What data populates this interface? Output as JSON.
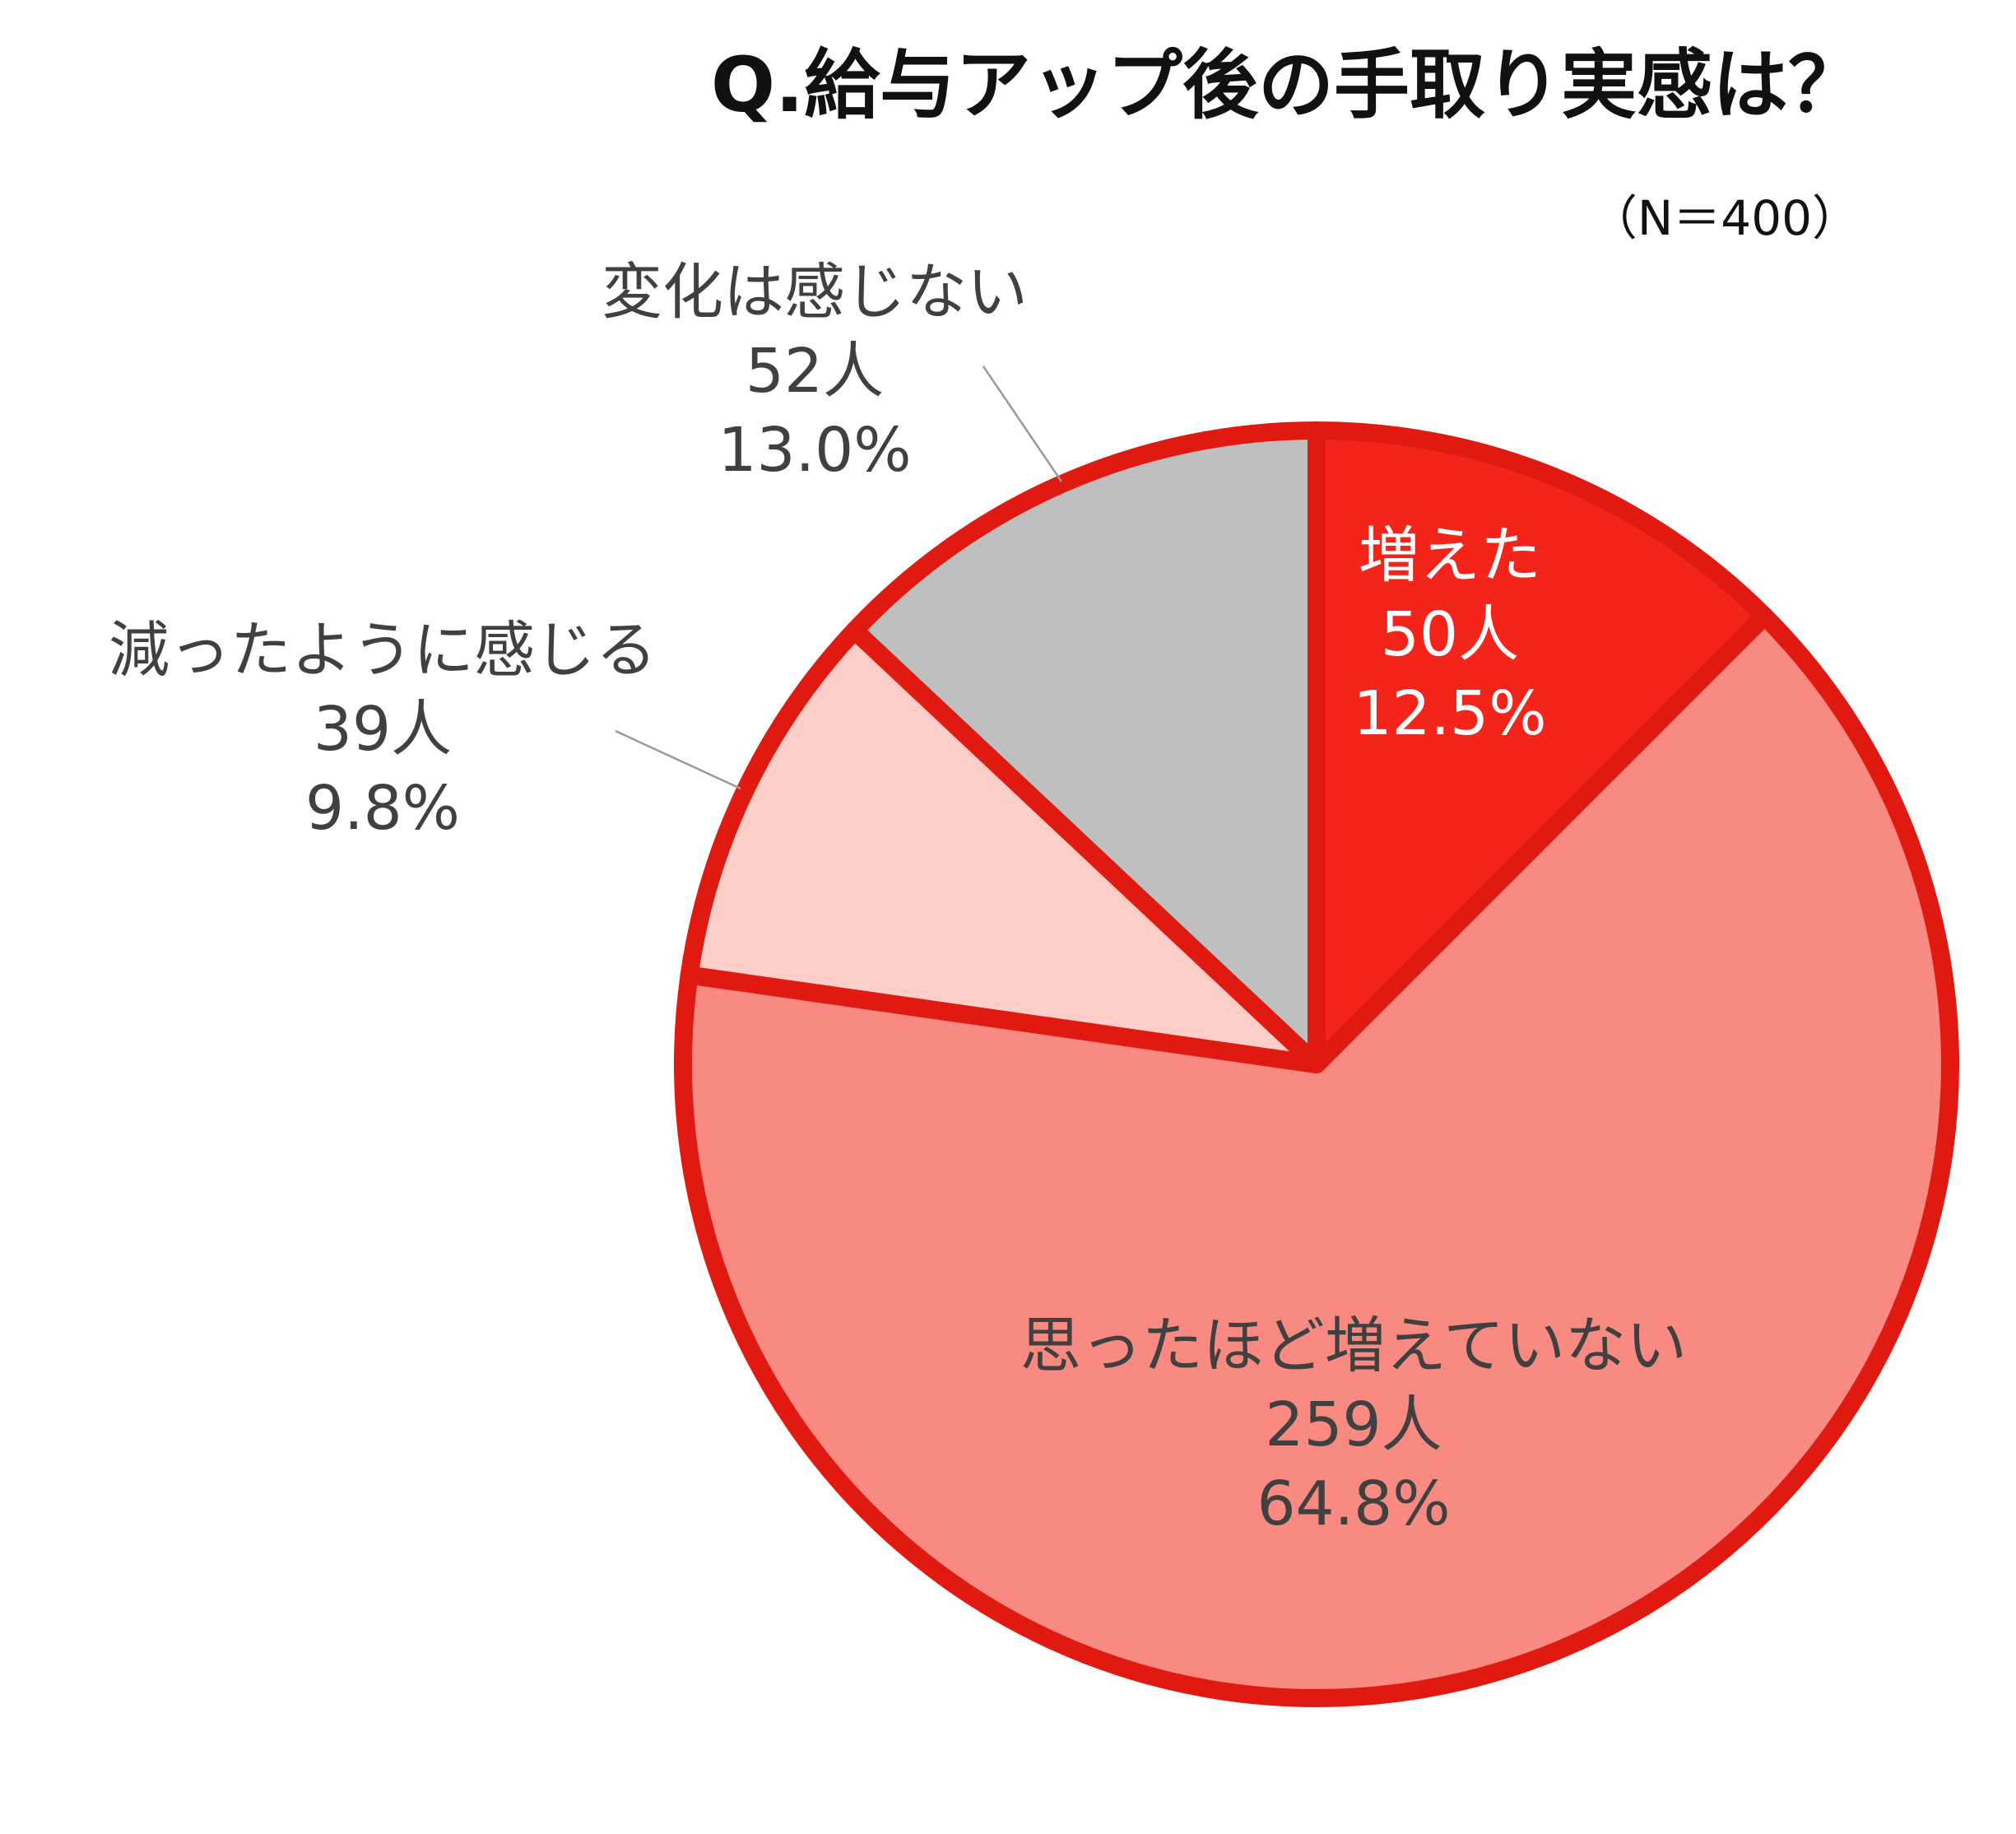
{
  "chart_data": {
    "type": "pie",
    "title": "Q.給与アップ後の手取り実感は？",
    "note": "（N＝400）",
    "unit": "人",
    "total": 400,
    "start_angle_deg": 0,
    "direction": "clockwise",
    "slices": [
      {
        "label": "増えた",
        "count": 50,
        "percent": 12.5,
        "count_text": "50人",
        "percent_text": "12.5%",
        "color": "#f3251a",
        "text_color": "#ffffff"
      },
      {
        "label": "思ったほど増えていない",
        "count": 259,
        "percent": 64.8,
        "count_text": "259人",
        "percent_text": "64.8%",
        "color": "#f88a82",
        "text_color": "#404040"
      },
      {
        "label": "減ったように感じる",
        "count": 39,
        "percent": 9.8,
        "count_text": "39人",
        "percent_text": "9.8%",
        "color": "#fdcdc7",
        "text_color": "#404040"
      },
      {
        "label": "変化は感じない",
        "count": 52,
        "percent": 13.0,
        "count_text": "52人",
        "percent_text": "13.0%",
        "color": "#bfbfbf",
        "text_color": "#404040"
      }
    ],
    "border_color": "#e01a10",
    "legend": "none"
  }
}
